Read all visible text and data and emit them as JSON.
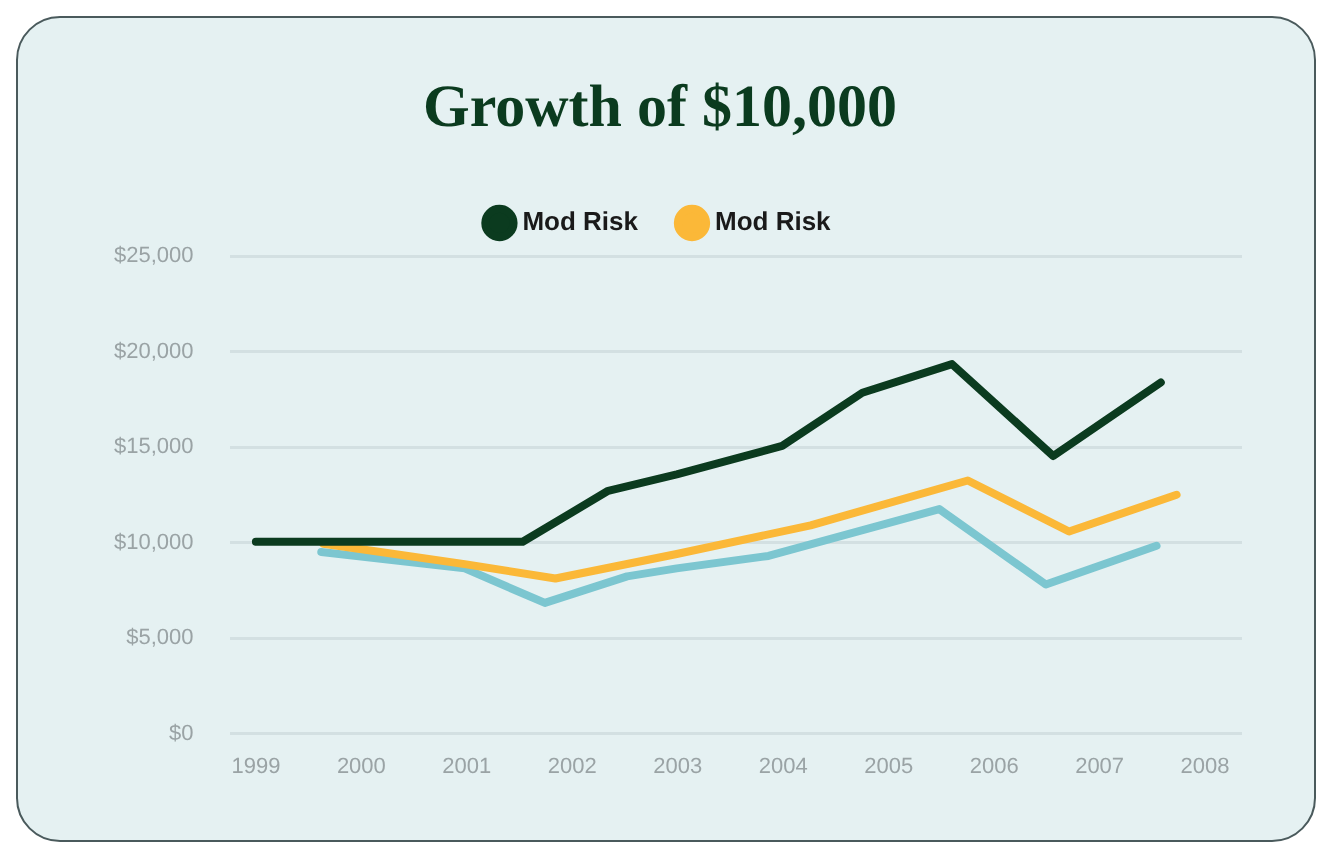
{
  "chart_data": {
    "type": "line",
    "title": "Growth of $10,000",
    "xlim": [
      1998.75,
      2008.35
    ],
    "xticks": [
      1999,
      2000,
      2001,
      2002,
      2003,
      2004,
      2005,
      2006,
      2007,
      2008
    ],
    "ylim": [
      0,
      25000
    ],
    "yticks": [
      {
        "value": 0,
        "label": "$0"
      },
      {
        "value": 5000,
        "label": "$5,000"
      },
      {
        "value": 10000,
        "label": "$10,000"
      },
      {
        "value": 15000,
        "label": "$15,000"
      },
      {
        "value": 20000,
        "label": "$20,000"
      },
      {
        "value": 25000,
        "label": "$25,000"
      }
    ],
    "grid": "y",
    "legend": "top",
    "marker": "none",
    "line_style": "solid",
    "series": [
      {
        "name": "Mod Risk",
        "color": "#0b3b1f",
        "x": [
          1999,
          2001.53,
          2002.34,
          2002.99,
          2003.99,
          2004.75,
          2005.6,
          2006.56,
          2007.58
        ],
        "values": [
          10040,
          10040,
          12710,
          13570,
          15060,
          17840,
          19340,
          14530,
          18380
        ]
      },
      {
        "name": "Mod Risk",
        "color": "#fbb838",
        "x": [
          1999.64,
          2000.98,
          2001.84,
          2002.99,
          2004.26,
          2005.75,
          2006.71,
          2007.73
        ],
        "values": [
          9940,
          8870,
          8120,
          9400,
          10900,
          13250,
          10580,
          12500
        ]
      },
      {
        "color": "#7cc6d0",
        "x": [
          1999.62,
          2000.98,
          2001.74,
          2002.52,
          2002.99,
          2003.86,
          2005.48,
          2006.49,
          2007.54
        ],
        "values": [
          9510,
          8650,
          6840,
          8230,
          8650,
          9300,
          11750,
          7800,
          9830
        ]
      }
    ]
  }
}
